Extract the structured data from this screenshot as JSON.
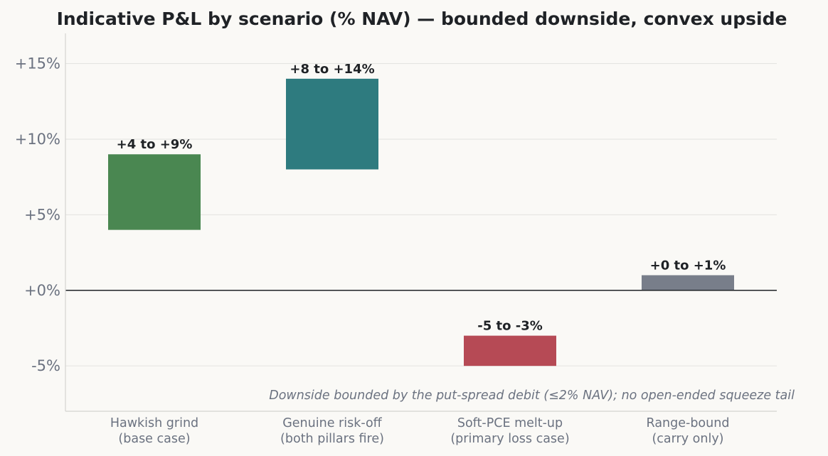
{
  "chart_data": {
    "type": "bar",
    "subtype": "floating-range",
    "title": "Indicative P&L by scenario (% NAV) — bounded downside, convex upside",
    "xlabel": "",
    "ylabel": "",
    "ylim": [
      -8,
      17
    ],
    "yticks": [
      -5,
      0,
      5,
      10,
      15
    ],
    "ytick_labels": [
      "-5%",
      "+0%",
      "+5%",
      "+10%",
      "+15%"
    ],
    "grid": "horizontal",
    "zero_line": true,
    "categories": [
      [
        "Hawkish grind",
        "(base case)"
      ],
      [
        "Genuine risk-off",
        "(both pillars fire)"
      ],
      [
        "Soft-PCE melt-up",
        "(primary loss case)"
      ],
      [
        "Range-bound",
        "(carry only)"
      ]
    ],
    "ranges": [
      {
        "low": 4,
        "high": 9,
        "label": "+4 to +9%",
        "color": "#4a8751"
      },
      {
        "low": 8,
        "high": 14,
        "label": "+8 to +14%",
        "color": "#2e7b7f"
      },
      {
        "low": -5,
        "high": -3,
        "label": "-5 to -3%",
        "color": "#b64a55"
      },
      {
        "low": 0,
        "high": 1,
        "label": "+0 to +1%",
        "color": "#787e8a"
      }
    ],
    "annotation": "Downside bounded by the put-spread debit (≤2% NAV); no open-ended squeeze tail"
  },
  "colors": {
    "background": "#faf9f6",
    "grid": "#e3e3e0",
    "axis": "#d4d4d0",
    "zero_line": "#1f2226",
    "text": "#1f2226",
    "muted_text": "#6b7280"
  }
}
